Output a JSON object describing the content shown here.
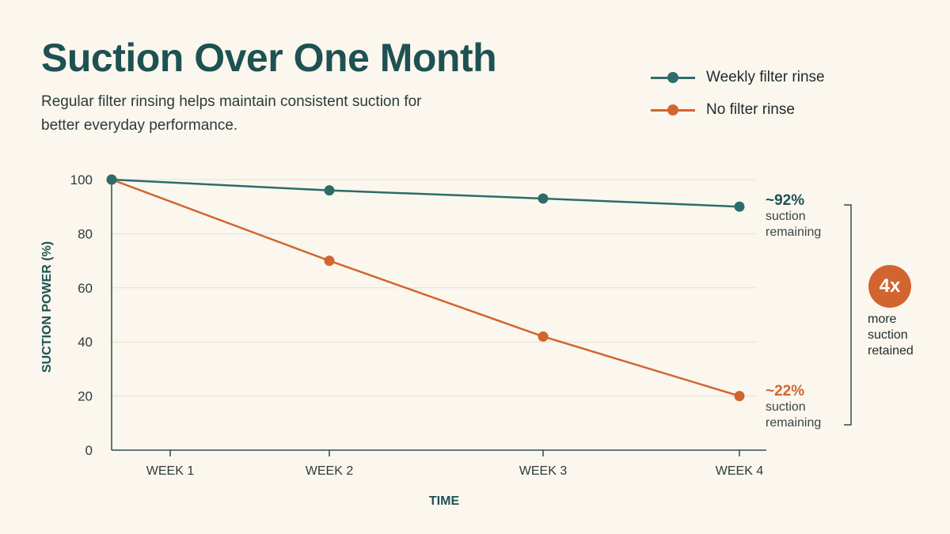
{
  "title": "Suction Over One Month",
  "subtitle": "Regular filter rinsing helps maintain consistent suction for better everyday performance.",
  "colors": {
    "teal": "#2e6b6c",
    "orange": "#d2652f",
    "grid": "#e4e0d6",
    "axis": "#2e4d4f"
  },
  "legend": [
    {
      "label": "Weekly filter rinse",
      "color": "#2e6b6c"
    },
    {
      "label": "No filter rinse",
      "color": "#d2652f"
    }
  ],
  "callouts": {
    "teal": {
      "value": "~92%",
      "note": "suction remaining"
    },
    "orange": {
      "value": "~22%",
      "note": "suction remaining"
    }
  },
  "badge": {
    "value": "4x",
    "note": "more suction retained"
  },
  "chart_data": {
    "type": "line",
    "title": "Suction Over One Month",
    "subtitle": "Regular filter rinsing helps maintain consistent suction for better everyday performance.",
    "xlabel": "TIME",
    "ylabel": "SUCTION POWER (%)",
    "categories": [
      "WEEK 1",
      "WEEK 2",
      "WEEK 3",
      "WEEK 4"
    ],
    "x": [
      0,
      1,
      2,
      3
    ],
    "xlim": [
      0,
      3
    ],
    "ylim": [
      0,
      100
    ],
    "yticks": [
      0,
      20,
      40,
      60,
      80,
      100
    ],
    "grid": true,
    "legend_position": "top-right",
    "series": [
      {
        "name": "Weekly filter rinse",
        "color": "#2e6b6c",
        "x": [
          0,
          1,
          2,
          3
        ],
        "values": [
          100,
          96,
          93,
          90
        ]
      },
      {
        "name": "No filter rinse",
        "color": "#d2652f",
        "x": [
          0,
          1,
          2,
          3
        ],
        "values": [
          100,
          70,
          42,
          20
        ]
      }
    ]
  }
}
